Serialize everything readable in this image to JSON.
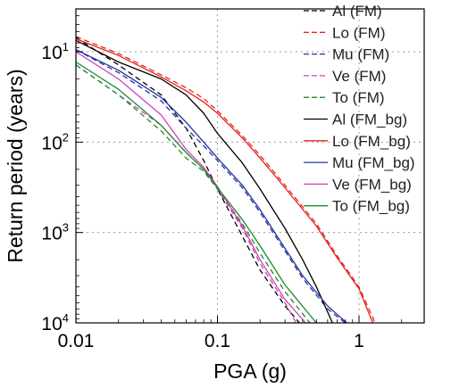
{
  "chart_data": {
    "type": "line",
    "xlabel": "PGA (g)",
    "ylabel": "Return period (years)",
    "xscale": "log",
    "yscale": "log",
    "xlim": [
      0.01,
      3
    ],
    "ylim": [
      10,
      10000
    ],
    "y_inverted": true,
    "grid": "dotted, at decades",
    "legend_position": "right",
    "x_ticks": [
      {
        "value": 0.01,
        "label": "0.01"
      },
      {
        "value": 0.1,
        "label": "0.1"
      },
      {
        "value": 1,
        "label": "1"
      }
    ],
    "y_ticks": [
      {
        "value": 10,
        "base": "10",
        "exp": "1"
      },
      {
        "value": 100,
        "base": "10",
        "exp": "2"
      },
      {
        "value": 1000,
        "base": "10",
        "exp": "3"
      },
      {
        "value": 10000,
        "base": "10",
        "exp": "4"
      }
    ],
    "series": [
      {
        "name": "Al (FM)",
        "color": "#000000",
        "style": "dashed",
        "points": [
          [
            0.01,
            7
          ],
          [
            0.02,
            14
          ],
          [
            0.04,
            30
          ],
          [
            0.06,
            70
          ],
          [
            0.08,
            160
          ],
          [
            0.1,
            330
          ],
          [
            0.15,
            1100
          ],
          [
            0.2,
            2600
          ],
          [
            0.3,
            6500
          ],
          [
            0.4,
            11000
          ]
        ]
      },
      {
        "name": "Lo (FM)",
        "color": "#e8201a",
        "style": "dashed",
        "points": [
          [
            0.01,
            6.8
          ],
          [
            0.02,
            10.5
          ],
          [
            0.04,
            18
          ],
          [
            0.06,
            25
          ],
          [
            0.08,
            33
          ],
          [
            0.1,
            45
          ],
          [
            0.15,
            85
          ],
          [
            0.2,
            140
          ],
          [
            0.3,
            300
          ],
          [
            0.5,
            800
          ],
          [
            0.7,
            1800
          ],
          [
            1.0,
            4000
          ],
          [
            1.3,
            10000
          ]
        ]
      },
      {
        "name": "Mu (FM)",
        "color": "#2233a0",
        "style": "dashed",
        "points": [
          [
            0.01,
            9.5
          ],
          [
            0.02,
            17
          ],
          [
            0.04,
            35
          ],
          [
            0.06,
            70
          ],
          [
            0.08,
            110
          ],
          [
            0.1,
            160
          ],
          [
            0.15,
            320
          ],
          [
            0.2,
            600
          ],
          [
            0.3,
            1600
          ],
          [
            0.4,
            3200
          ],
          [
            0.6,
            7000
          ],
          [
            0.8,
            10000
          ]
        ]
      },
      {
        "name": "Ve (FM)",
        "color": "#d040b8",
        "style": "dashed",
        "points": [
          [
            0.01,
            14
          ],
          [
            0.02,
            30
          ],
          [
            0.04,
            65
          ],
          [
            0.06,
            130
          ],
          [
            0.08,
            200
          ],
          [
            0.1,
            330
          ],
          [
            0.15,
            900
          ],
          [
            0.2,
            2200
          ],
          [
            0.3,
            6000
          ],
          [
            0.36,
            10000
          ]
        ]
      },
      {
        "name": "To (FM)",
        "color": "#1e8a2e",
        "style": "dashed",
        "points": [
          [
            0.01,
            14
          ],
          [
            0.02,
            30
          ],
          [
            0.04,
            75
          ],
          [
            0.06,
            150
          ],
          [
            0.08,
            210
          ],
          [
            0.1,
            330
          ],
          [
            0.15,
            800
          ],
          [
            0.2,
            1700
          ],
          [
            0.3,
            4500
          ],
          [
            0.45,
            10000
          ]
        ]
      },
      {
        "name": "Al (FM_bg)",
        "color": "#000000",
        "style": "solid",
        "points": [
          [
            0.01,
            7.5
          ],
          [
            0.02,
            13
          ],
          [
            0.04,
            20
          ],
          [
            0.06,
            30
          ],
          [
            0.08,
            48
          ],
          [
            0.1,
            80
          ],
          [
            0.15,
            170
          ],
          [
            0.2,
            330
          ],
          [
            0.3,
            900
          ],
          [
            0.4,
            2000
          ],
          [
            0.5,
            4000
          ],
          [
            0.65,
            10000
          ]
        ]
      },
      {
        "name": "Lo (FM_bg)",
        "color": "#e8201a",
        "style": "solid",
        "points": [
          [
            0.01,
            7.2
          ],
          [
            0.02,
            11
          ],
          [
            0.04,
            19
          ],
          [
            0.06,
            27
          ],
          [
            0.08,
            36
          ],
          [
            0.1,
            48
          ],
          [
            0.15,
            90
          ],
          [
            0.2,
            150
          ],
          [
            0.3,
            320
          ],
          [
            0.5,
            850
          ],
          [
            0.7,
            1900
          ],
          [
            1.0,
            4200
          ],
          [
            1.25,
            10000
          ]
        ]
      },
      {
        "name": "Mu (FM_bg)",
        "color": "#2233a0",
        "style": "solid",
        "points": [
          [
            0.01,
            9.5
          ],
          [
            0.02,
            16
          ],
          [
            0.04,
            32
          ],
          [
            0.06,
            60
          ],
          [
            0.08,
            100
          ],
          [
            0.1,
            150
          ],
          [
            0.15,
            300
          ],
          [
            0.2,
            560
          ],
          [
            0.3,
            1500
          ],
          [
            0.4,
            3000
          ],
          [
            0.6,
            6500
          ],
          [
            0.82,
            10000
          ]
        ]
      },
      {
        "name": "Ve (FM_bg)",
        "color": "#d040b8",
        "style": "solid",
        "points": [
          [
            0.01,
            10
          ],
          [
            0.02,
            20
          ],
          [
            0.04,
            50
          ],
          [
            0.06,
            120
          ],
          [
            0.08,
            190
          ],
          [
            0.1,
            310
          ],
          [
            0.15,
            850
          ],
          [
            0.2,
            2000
          ],
          [
            0.3,
            5500
          ],
          [
            0.42,
            10000
          ]
        ]
      },
      {
        "name": "To (FM_bg)",
        "color": "#1e8a2e",
        "style": "solid",
        "points": [
          [
            0.01,
            13
          ],
          [
            0.02,
            26
          ],
          [
            0.04,
            65
          ],
          [
            0.06,
            130
          ],
          [
            0.08,
            200
          ],
          [
            0.1,
            320
          ],
          [
            0.15,
            720
          ],
          [
            0.2,
            1400
          ],
          [
            0.3,
            3800
          ],
          [
            0.5,
            10000
          ]
        ]
      }
    ]
  }
}
